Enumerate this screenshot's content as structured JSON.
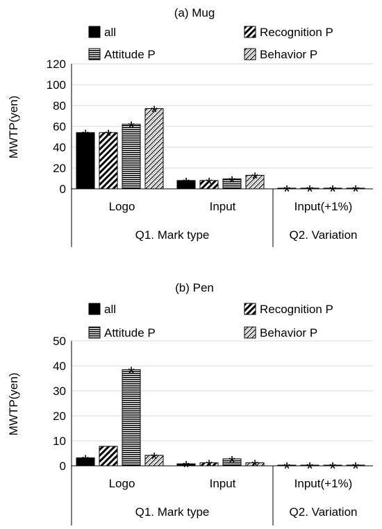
{
  "chart_data": [
    {
      "type": "bar",
      "title": "(a) Mug",
      "ylabel": "MWTP(yen)",
      "xlabel": "",
      "ylim": [
        0,
        120
      ],
      "yticks": [
        0,
        20,
        40,
        60,
        80,
        100,
        120
      ],
      "grid": true,
      "legend_position": "top",
      "categories": [
        "Logo",
        "Input",
        "Input(+1%)"
      ],
      "groups": [
        {
          "label": "Q1. Mark type",
          "categories": [
            "Logo",
            "Input"
          ]
        },
        {
          "label": "Q2. Variation",
          "categories": [
            "Input(+1%)"
          ]
        }
      ],
      "series": [
        {
          "name": "all",
          "pattern": "solid",
          "values": [
            54,
            8,
            0.5
          ],
          "significance": [
            "*",
            "*",
            "*"
          ]
        },
        {
          "name": "Recognition P",
          "pattern": "diagonal",
          "values": [
            54,
            8,
            0.5
          ],
          "significance": [
            "*",
            "*",
            "*"
          ]
        },
        {
          "name": "Attitude P",
          "pattern": "horizontal",
          "values": [
            62,
            9.5,
            0.5
          ],
          "significance": [
            "*",
            "*",
            "*"
          ]
        },
        {
          "name": "Behavior P",
          "pattern": "dotted-diagonal",
          "values": [
            77,
            13,
            0.5
          ],
          "significance": [
            "*",
            "*",
            "*"
          ]
        }
      ]
    },
    {
      "type": "bar",
      "title": "(b) Pen",
      "ylabel": "MWTP(yen)",
      "xlabel": "",
      "ylim": [
        0,
        50
      ],
      "yticks": [
        0,
        10,
        20,
        30,
        40,
        50
      ],
      "grid": true,
      "legend_position": "top",
      "categories": [
        "Logo",
        "Input",
        "Input(+1%)"
      ],
      "groups": [
        {
          "label": "Q1. Mark type",
          "categories": [
            "Logo",
            "Input"
          ]
        },
        {
          "label": "Q2. Variation",
          "categories": [
            "Input(+1%)"
          ]
        }
      ],
      "series": [
        {
          "name": "all",
          "pattern": "solid",
          "values": [
            3.2,
            0.8,
            0.2
          ],
          "significance": [
            "*",
            "*",
            "*"
          ]
        },
        {
          "name": "Recognition P",
          "pattern": "diagonal",
          "values": [
            7.8,
            1.2,
            0.2
          ],
          "significance": [
            "",
            "*",
            "*"
          ]
        },
        {
          "name": "Attitude P",
          "pattern": "horizontal",
          "values": [
            38.5,
            2.8,
            0.2
          ],
          "significance": [
            "*",
            "*",
            "*"
          ]
        },
        {
          "name": "Behavior P",
          "pattern": "dotted-diagonal",
          "values": [
            4.2,
            1.2,
            0.3
          ],
          "significance": [
            "*",
            "*",
            "*"
          ]
        }
      ]
    }
  ]
}
